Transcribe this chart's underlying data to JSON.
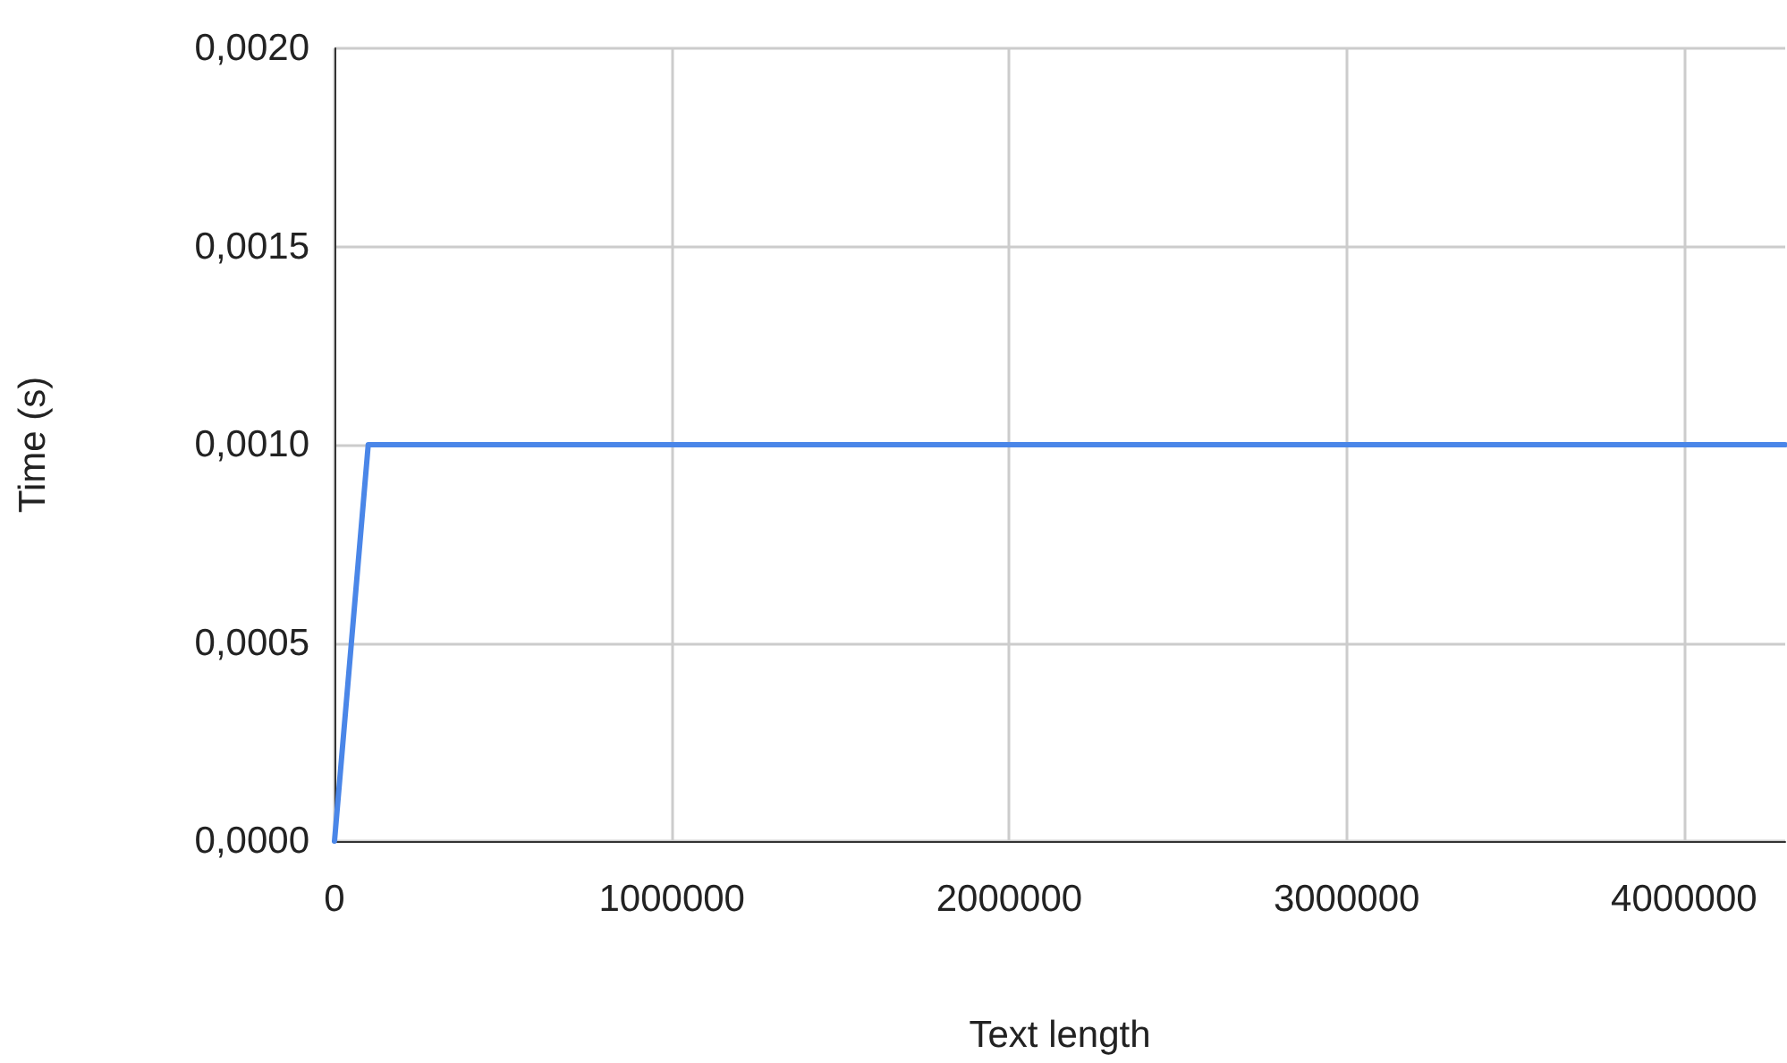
{
  "chart_data": {
    "type": "line",
    "xlabel": "Text length",
    "ylabel": "Time (s)",
    "x": [
      0,
      100000,
      4300000
    ],
    "series": [
      {
        "color": "#4a86e8",
        "values": [
          0,
          0.001,
          0.001
        ]
      }
    ],
    "xlim": [
      0,
      4300000
    ],
    "xticks": [
      0,
      1000000,
      2000000,
      3000000,
      4000000
    ],
    "ylim": [
      0,
      0.002
    ],
    "yticks": [
      {
        "value": 0,
        "label": "0,0000"
      },
      {
        "value": 0.0005,
        "label": "0,0005"
      },
      {
        "value": 0.001,
        "label": "0,0010"
      },
      {
        "value": 0.0015,
        "label": "0,0015"
      },
      {
        "value": 0.002,
        "label": "0,0020"
      }
    ],
    "grid": true,
    "marker": "none",
    "line_style": "solid"
  }
}
